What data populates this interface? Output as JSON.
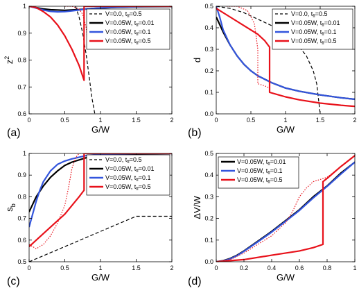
{
  "figure": {
    "panels": [
      {
        "id": "a",
        "panel_label": "(a)",
        "xlabel": "G/W",
        "ylabel": "z",
        "ylabel_sup": "2",
        "xlim": [
          0,
          2
        ],
        "ylim": [
          0.6,
          1.0
        ],
        "xticks": [
          0,
          0.5,
          1,
          1.5,
          2
        ],
        "xtick_labels": [
          "0",
          "0.5",
          "1",
          "1.5",
          "2"
        ],
        "yticks": [
          0.6,
          0.7,
          0.8,
          0.9,
          1.0
        ],
        "ytick_labels": [
          "0.6",
          "0.7",
          "0.8",
          "0.9",
          "1"
        ],
        "legend": [
          {
            "text": "V=0.0, t",
            "sub": "ff",
            "tail": "=0.5",
            "color": "#000000",
            "dash": "4,3",
            "width": 1.2
          },
          {
            "text": "V=0.05W, t",
            "sub": "ff",
            "tail": "=0.01",
            "color": "#000000",
            "dash": "",
            "width": 2.4
          },
          {
            "text": "V=0.05W, t",
            "sub": "ff",
            "tail": "=0.1",
            "color": "#3355dd",
            "dash": "",
            "width": 2.4
          },
          {
            "text": "V=0.05W, t",
            "sub": "ff",
            "tail": "=0.5",
            "color": "#e8111a",
            "dash": "",
            "width": 2.4
          }
        ]
      },
      {
        "id": "b",
        "panel_label": "(b)",
        "xlabel": "G/W",
        "ylabel": "d",
        "ylabel_sup": "",
        "xlim": [
          0,
          2
        ],
        "ylim": [
          0,
          0.5
        ],
        "xticks": [
          0,
          0.5,
          1,
          1.5,
          2
        ],
        "xtick_labels": [
          "0",
          "0.5",
          "1",
          "1.5",
          "2"
        ],
        "yticks": [
          0,
          0.1,
          0.2,
          0.3,
          0.4,
          0.5
        ],
        "ytick_labels": [
          "0.0",
          "0.1",
          "0.2",
          "0.3",
          "0.4",
          "0.5"
        ],
        "legend": [
          {
            "text": "V=0.0, t",
            "sub": "ff",
            "tail": "=0.5",
            "color": "#000000",
            "dash": "4,3",
            "width": 1.2
          },
          {
            "text": "V=0.05W, t",
            "sub": "ff",
            "tail": "=0.01",
            "color": "#000000",
            "dash": "",
            "width": 2.4
          },
          {
            "text": "V=0.05W, t",
            "sub": "ff",
            "tail": "=0.1",
            "color": "#3355dd",
            "dash": "",
            "width": 2.4
          },
          {
            "text": "V=0.05W, t",
            "sub": "ff",
            "tail": "=0.5",
            "color": "#e8111a",
            "dash": "",
            "width": 2.4
          }
        ]
      },
      {
        "id": "c",
        "panel_label": "(c)",
        "xlabel": "G/W",
        "ylabel": "s",
        "ylabel_sub": "b",
        "xlim": [
          0,
          2
        ],
        "ylim": [
          0.5,
          1.0
        ],
        "xticks": [
          0,
          0.5,
          1,
          1.5,
          2
        ],
        "xtick_labels": [
          "0",
          "0.5",
          "1",
          "1.5",
          "2"
        ],
        "yticks": [
          0.5,
          0.6,
          0.7,
          0.8,
          0.9,
          1.0
        ],
        "ytick_labels": [
          "0.5",
          "0.6",
          "0.7",
          "0.8",
          "0.9",
          "1"
        ],
        "legend": [
          {
            "text": "V=0.0, t",
            "sub": "ff",
            "tail": "=0.5",
            "color": "#000000",
            "dash": "4,3",
            "width": 1.2
          },
          {
            "text": "V=0.05W, t",
            "sub": "ff",
            "tail": "=0.01",
            "color": "#000000",
            "dash": "",
            "width": 2.4
          },
          {
            "text": "V=0.05W, t",
            "sub": "ff",
            "tail": "=0.1",
            "color": "#3355dd",
            "dash": "",
            "width": 2.4
          },
          {
            "text": "V=0.05W, t",
            "sub": "ff",
            "tail": "=0.5",
            "color": "#e8111a",
            "dash": "",
            "width": 2.4
          }
        ]
      },
      {
        "id": "d",
        "panel_label": "(d)",
        "xlabel": "G/W",
        "ylabel": "ΔV/W",
        "ylabel_sup": "",
        "xlim": [
          0,
          1
        ],
        "ylim": [
          0,
          0.5
        ],
        "xticks": [
          0,
          0.2,
          0.4,
          0.6,
          0.8,
          1
        ],
        "xtick_labels": [
          "0",
          "0.2",
          "0.4",
          "0.6",
          "0.8",
          "1"
        ],
        "yticks": [
          0,
          0.1,
          0.2,
          0.3,
          0.4,
          0.5
        ],
        "ytick_labels": [
          "0.0",
          "0.1",
          "0.2",
          "0.3",
          "0.4",
          "0.5"
        ],
        "legend": [
          {
            "text": "V=0.05W, t",
            "sub": "ff",
            "tail": "=0.01",
            "color": "#000000",
            "dash": "",
            "width": 2.4
          },
          {
            "text": "V=0.05W, t",
            "sub": "ff",
            "tail": "=0.1",
            "color": "#3355dd",
            "dash": "",
            "width": 2.4
          },
          {
            "text": "V=0.05W, t",
            "sub": "ff",
            "tail": "=0.5",
            "color": "#e8111a",
            "dash": "",
            "width": 2.4
          }
        ]
      }
    ]
  },
  "chart_data": [
    {
      "type": "line",
      "panel": "a",
      "xlabel": "G/W",
      "ylabel": "z^2",
      "xlim": [
        0,
        2
      ],
      "ylim": [
        0.6,
        1.0
      ],
      "grid": false,
      "legend_position": "top-right",
      "series": [
        {
          "name": "V=0.0, t_ff=0.5",
          "color": "#000000",
          "style": "dashed",
          "x": [
            0.65,
            0.7,
            0.75,
            0.8,
            0.85,
            0.88,
            0.9,
            0.92
          ],
          "y": [
            1.0,
            0.96,
            0.9,
            0.82,
            0.72,
            0.66,
            0.63,
            0.6
          ]
        },
        {
          "name": "V=0.05W, t_ff=0.01",
          "color": "#000000",
          "style": "solid",
          "x": [
            0,
            0.1,
            0.2,
            0.3,
            0.5,
            0.7,
            0.9,
            1.2,
            1.5,
            2.0
          ],
          "y": [
            1.0,
            0.995,
            0.99,
            0.987,
            0.985,
            0.988,
            0.992,
            0.996,
            0.998,
            0.999
          ]
        },
        {
          "name": "V=0.05W, t_ff=0.1",
          "color": "#3355dd",
          "style": "solid",
          "x": [
            0,
            0.1,
            0.2,
            0.3,
            0.4,
            0.5,
            0.6,
            0.7,
            0.8,
            1.0,
            1.3,
            1.6,
            2.0
          ],
          "y": [
            1.0,
            0.993,
            0.986,
            0.981,
            0.979,
            0.98,
            0.983,
            0.986,
            0.99,
            0.994,
            0.997,
            0.999,
            1.0
          ]
        },
        {
          "name": "V=0.05W, t_ff=0.5",
          "color": "#e8111a",
          "style": "solid",
          "x": [
            0,
            0.1,
            0.2,
            0.3,
            0.4,
            0.5,
            0.6,
            0.7,
            0.77,
            0.77,
            0.9,
            1.2,
            1.6,
            2.0
          ],
          "y": [
            1.0,
            0.995,
            0.98,
            0.96,
            0.93,
            0.89,
            0.84,
            0.78,
            0.725,
            1.0,
            1.0,
            1.0,
            1.0,
            1.0
          ]
        },
        {
          "name": "V=0.05W, t_ff=0.5 (dotted)",
          "color": "#e8111a",
          "style": "dotted",
          "x": [
            0.5,
            0.6,
            0.7,
            0.75,
            0.8,
            0.82
          ],
          "y": [
            1.0,
            1.0,
            0.99,
            0.97,
            0.92,
            0.86
          ]
        }
      ]
    },
    {
      "type": "line",
      "panel": "b",
      "xlabel": "G/W",
      "ylabel": "d",
      "xlim": [
        0,
        2
      ],
      "ylim": [
        0,
        0.5
      ],
      "grid": false,
      "legend_position": "top-right",
      "series": [
        {
          "name": "V=0.0, t_ff=0.5",
          "color": "#000000",
          "style": "dashed",
          "x": [
            0,
            0.2,
            0.4,
            0.6,
            0.8,
            1.0,
            1.2,
            1.3,
            1.4,
            1.45,
            1.5
          ],
          "y": [
            0.5,
            0.49,
            0.47,
            0.44,
            0.41,
            0.37,
            0.31,
            0.27,
            0.2,
            0.14,
            0.0
          ]
        },
        {
          "name": "V=0.05W, t_ff=0.01",
          "color": "#000000",
          "style": "solid",
          "x": [
            0,
            0.1,
            0.2,
            0.3,
            0.4,
            0.5,
            0.6,
            0.8,
            1.0,
            1.2,
            1.5,
            1.8,
            2.0
          ],
          "y": [
            0.45,
            0.38,
            0.32,
            0.27,
            0.23,
            0.2,
            0.177,
            0.145,
            0.12,
            0.105,
            0.088,
            0.075,
            0.068
          ]
        },
        {
          "name": "V=0.05W, t_ff=0.1",
          "color": "#3355dd",
          "style": "solid",
          "x": [
            0,
            0.05,
            0.1,
            0.2,
            0.3,
            0.4,
            0.5,
            0.6,
            0.8,
            1.0,
            1.2,
            1.5,
            1.8,
            2.0
          ],
          "y": [
            0.5,
            0.45,
            0.39,
            0.32,
            0.27,
            0.23,
            0.2,
            0.177,
            0.145,
            0.12,
            0.105,
            0.088,
            0.075,
            0.068
          ]
        },
        {
          "name": "V=0.05W, t_ff=0.5",
          "color": "#e8111a",
          "style": "solid",
          "x": [
            0,
            0.2,
            0.4,
            0.6,
            0.7,
            0.77,
            0.77,
            0.9,
            1.0,
            1.2,
            1.5,
            1.8,
            2.0
          ],
          "y": [
            0.49,
            0.45,
            0.41,
            0.37,
            0.34,
            0.31,
            0.1,
            0.088,
            0.079,
            0.065,
            0.05,
            0.04,
            0.035
          ]
        },
        {
          "name": "V=0.05W, t_ff=0.5 (dotted)",
          "color": "#e8111a",
          "style": "dotted",
          "x": [
            0.15,
            0.3,
            0.45,
            0.55,
            0.58,
            0.6,
            0.6,
            0.7,
            0.77
          ],
          "y": [
            0.5,
            0.5,
            0.48,
            0.42,
            0.35,
            0.3,
            0.14,
            0.13,
            0.12
          ]
        }
      ]
    },
    {
      "type": "line",
      "panel": "c",
      "xlabel": "G/W",
      "ylabel": "s_b",
      "xlim": [
        0,
        2
      ],
      "ylim": [
        0.5,
        1.0
      ],
      "grid": false,
      "legend_position": "bottom-right",
      "series": [
        {
          "name": "V=0.0, t_ff=0.5",
          "color": "#000000",
          "style": "dashed",
          "x": [
            0,
            0.5,
            1.0,
            1.5,
            2.0
          ],
          "y": [
            0.5,
            0.57,
            0.64,
            0.71,
            0.71
          ]
        },
        {
          "name": "V=0.05W, t_ff=0.01",
          "color": "#000000",
          "style": "solid",
          "x": [
            0,
            0.1,
            0.2,
            0.3,
            0.4,
            0.5,
            0.6,
            0.8,
            1.0,
            1.5,
            2.0
          ],
          "y": [
            0.73,
            0.8,
            0.85,
            0.89,
            0.92,
            0.945,
            0.96,
            0.98,
            0.99,
            0.997,
            1.0
          ]
        },
        {
          "name": "V=0.05W, t_ff=0.1",
          "color": "#3355dd",
          "style": "solid",
          "x": [
            0,
            0.05,
            0.1,
            0.15,
            0.2,
            0.3,
            0.4,
            0.5,
            0.6,
            0.8,
            1.0,
            1.5,
            2.0
          ],
          "y": [
            0.66,
            0.72,
            0.78,
            0.83,
            0.87,
            0.92,
            0.95,
            0.965,
            0.975,
            0.99,
            0.996,
            1.0,
            1.0
          ]
        },
        {
          "name": "V=0.05W, t_ff=0.5",
          "color": "#e8111a",
          "style": "solid",
          "x": [
            0,
            0.1,
            0.2,
            0.3,
            0.4,
            0.5,
            0.6,
            0.7,
            0.77,
            0.77,
            1.0,
            1.5,
            2.0
          ],
          "y": [
            0.57,
            0.6,
            0.63,
            0.66,
            0.69,
            0.72,
            0.76,
            0.8,
            0.83,
            1.0,
            1.0,
            1.0,
            1.0
          ]
        },
        {
          "name": "V=0.05W, t_ff=0.5 (dotted)",
          "color": "#e8111a",
          "style": "dotted",
          "x": [
            0,
            0.1,
            0.2,
            0.3,
            0.4,
            0.5,
            0.55,
            0.6,
            0.65,
            0.7,
            0.8
          ],
          "y": [
            0.58,
            0.56,
            0.58,
            0.62,
            0.68,
            0.76,
            0.84,
            0.93,
            0.98,
            1.0,
            1.0
          ]
        }
      ]
    },
    {
      "type": "line",
      "panel": "d",
      "xlabel": "G/W",
      "ylabel": "ΔV/W",
      "xlim": [
        0,
        1
      ],
      "ylim": [
        0,
        0.5
      ],
      "grid": false,
      "legend_position": "top-left",
      "series": [
        {
          "name": "V=0.05W, t_ff=0.01",
          "color": "#000000",
          "style": "solid",
          "x": [
            0,
            0.05,
            0.1,
            0.15,
            0.2,
            0.3,
            0.4,
            0.5,
            0.6,
            0.7,
            0.8,
            0.9,
            1.0
          ],
          "y": [
            0,
            0.005,
            0.015,
            0.03,
            0.05,
            0.095,
            0.14,
            0.19,
            0.24,
            0.3,
            0.35,
            0.41,
            0.46
          ]
        },
        {
          "name": "V=0.05W, t_ff=0.1",
          "color": "#3355dd",
          "style": "solid",
          "x": [
            0,
            0.05,
            0.1,
            0.15,
            0.2,
            0.3,
            0.4,
            0.5,
            0.6,
            0.7,
            0.8,
            0.9,
            1.0
          ],
          "y": [
            0,
            0.004,
            0.013,
            0.028,
            0.048,
            0.092,
            0.137,
            0.187,
            0.237,
            0.295,
            0.348,
            0.405,
            0.46
          ]
        },
        {
          "name": "V=0.05W, t_ff=0.5",
          "color": "#e8111a",
          "style": "solid",
          "x": [
            0,
            0.2,
            0.4,
            0.6,
            0.7,
            0.77,
            0.77,
            0.8,
            0.9,
            1.0
          ],
          "y": [
            0,
            0.01,
            0.03,
            0.05,
            0.065,
            0.08,
            0.37,
            0.385,
            0.44,
            0.49
          ]
        },
        {
          "name": "V=0.05W, t_ff=0.5 (dotted)",
          "color": "#e8111a",
          "style": "dotted",
          "x": [
            0,
            0.1,
            0.2,
            0.3,
            0.4,
            0.5,
            0.55,
            0.6,
            0.65,
            0.7,
            0.8,
            0.9,
            1.0
          ],
          "y": [
            0,
            0.01,
            0.04,
            0.08,
            0.12,
            0.18,
            0.23,
            0.3,
            0.34,
            0.37,
            0.39,
            0.44,
            0.49
          ]
        }
      ]
    }
  ]
}
